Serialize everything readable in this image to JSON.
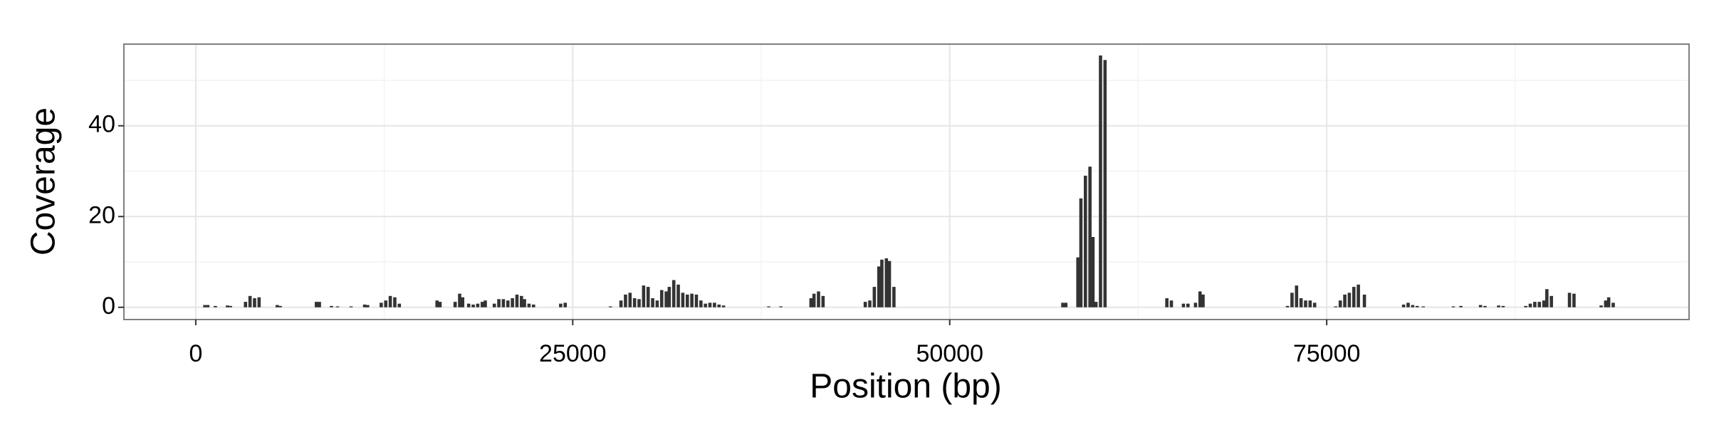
{
  "chart_data": {
    "type": "bar",
    "xlabel": "Position (bp)",
    "ylabel": "Coverage",
    "x": [
      600,
      800,
      1300,
      2100,
      2300,
      3300,
      3600,
      3900,
      4200,
      5400,
      5600,
      8000,
      8200,
      9000,
      9400,
      10300,
      11200,
      11400,
      12300,
      12600,
      12900,
      13200,
      13500,
      16000,
      16200,
      17200,
      17500,
      17700,
      18100,
      18400,
      18700,
      19000,
      19200,
      19800,
      20100,
      20400,
      20700,
      21000,
      21300,
      21600,
      21800,
      22100,
      22400,
      24200,
      24500,
      27500,
      28200,
      28500,
      28800,
      29100,
      29400,
      29700,
      30000,
      30300,
      30600,
      30900,
      31200,
      31400,
      31700,
      32000,
      32300,
      32600,
      32900,
      33200,
      33500,
      33800,
      34100,
      34400,
      34700,
      35000,
      38000,
      38800,
      40800,
      41000,
      41300,
      41600,
      44400,
      44700,
      45000,
      45300,
      45500,
      45800,
      46000,
      46300,
      57500,
      57700,
      58500,
      58700,
      59000,
      59300,
      59500,
      59700,
      60000,
      60300,
      64400,
      64700,
      65500,
      65800,
      66300,
      66600,
      66800,
      72400,
      72700,
      73000,
      73300,
      73600,
      73900,
      74200,
      75600,
      75900,
      76200,
      76500,
      76800,
      77100,
      77500,
      80100,
      80400,
      80700,
      81000,
      81400,
      83400,
      83900,
      85200,
      85500,
      86400,
      86700,
      88200,
      88500,
      88800,
      89100,
      89400,
      89600,
      89900,
      91100,
      91400,
      93200,
      93500,
      93700,
      94000
    ],
    "values": [
      0.5,
      0.5,
      0.3,
      0.4,
      0.3,
      1.2,
      2.5,
      2,
      2.2,
      0.5,
      0.3,
      1.2,
      1.2,
      0.3,
      0.2,
      0.2,
      0.6,
      0.5,
      1,
      1.5,
      2.5,
      2.2,
      0.8,
      1.5,
      1.2,
      1.2,
      3,
      2.2,
      0.8,
      0.6,
      0.8,
      1.2,
      1.5,
      0.8,
      1.8,
      1.8,
      1.5,
      2,
      2.8,
      2.5,
      1.8,
      0.8,
      0.6,
      0.8,
      1,
      0.2,
      1.5,
      2.8,
      3.2,
      2,
      1.8,
      4.8,
      4.5,
      2,
      1.5,
      3.8,
      3.5,
      4.5,
      6,
      5,
      3.2,
      2.8,
      3,
      2.8,
      1.5,
      0.8,
      1,
      1,
      0.6,
      0.4,
      0.2,
      0.2,
      2,
      3,
      3.5,
      2.5,
      1.2,
      1.5,
      4.5,
      9,
      10.5,
      10.8,
      10.2,
      4.5,
      1,
      1,
      11,
      24,
      29,
      31,
      15.5,
      1.2,
      55.5,
      54.5,
      2,
      1.5,
      0.8,
      0.8,
      1,
      3.5,
      2.8,
      0.3,
      3.2,
      4.8,
      2,
      1.5,
      1.5,
      1,
      0.2,
      1.5,
      2.8,
      3.2,
      4.5,
      5,
      2.8,
      0.6,
      1,
      0.5,
      0.3,
      0.2,
      0.2,
      0.3,
      0.5,
      0.3,
      0.4,
      0.3,
      0.3,
      0.8,
      1.2,
      1.2,
      1.5,
      4,
      2.5,
      3.2,
      3,
      0.4,
      1.5,
      2.2,
      1
    ],
    "color": "#333333",
    "xlim": [
      -4765,
      99030
    ],
    "xticks": [
      0,
      25000,
      50000,
      75000
    ],
    "xminor": [
      12500,
      37500,
      62500,
      87500
    ],
    "ylim": [
      -2.7,
      58
    ],
    "yticks": [
      0,
      20,
      40
    ],
    "yminor": [
      10,
      30,
      50
    ],
    "grid": true
  }
}
